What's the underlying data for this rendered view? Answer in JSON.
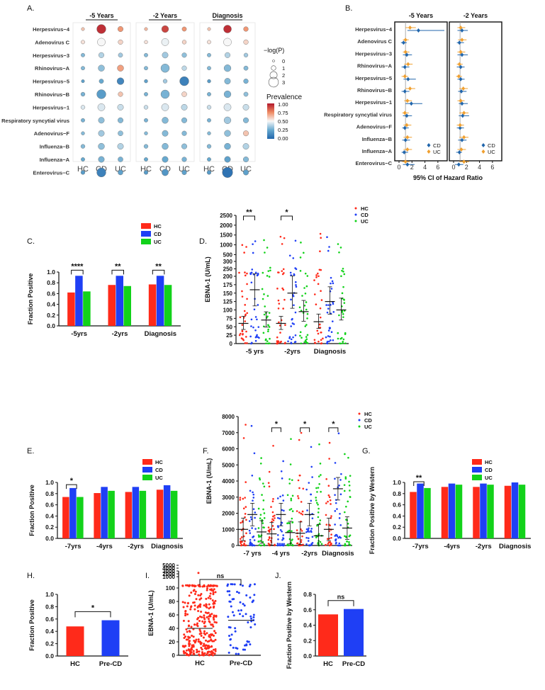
{
  "chart_data": [
    {
      "type": "scatter",
      "panel": "A.",
      "subtype": "dot-matrix",
      "columns": [
        "-5 Years",
        "-2 Years",
        "Diagnosis"
      ],
      "groups": [
        "HC",
        "CD",
        "UC"
      ],
      "rows": [
        "Herpesvirus−4",
        "Adenovirus C",
        "Herpesvirus−3",
        "Rhinovirus−A",
        "Herpesvirus−5",
        "Rhinovirus−B",
        "Herpesvirus−1",
        "Respiratory syncytial virus",
        "Adenovirus−F",
        "Influenza−B",
        "Influenza−A",
        "Enterovirus−C"
      ],
      "prevalence": [
        [
          [
            0.62,
            0.95,
            0.72
          ],
          [
            0.65,
            0.9,
            0.72
          ],
          [
            0.62,
            0.95,
            0.72
          ]
        ],
        [
          [
            0.55,
            0.5,
            0.58
          ],
          [
            0.55,
            0.48,
            0.58
          ],
          [
            0.55,
            0.5,
            0.58
          ]
        ],
        [
          [
            0.3,
            0.38,
            0.35
          ],
          [
            0.3,
            0.35,
            0.32
          ],
          [
            0.3,
            0.38,
            0.35
          ]
        ],
        [
          [
            0.3,
            0.32,
            0.7
          ],
          [
            0.3,
            0.3,
            0.4
          ],
          [
            0.3,
            0.3,
            0.3
          ]
        ],
        [
          [
            0.22,
            0.25,
            0.12
          ],
          [
            0.22,
            0.35,
            0.1
          ],
          [
            0.2,
            0.3,
            0.28
          ]
        ],
        [
          [
            0.28,
            0.2,
            0.62
          ],
          [
            0.28,
            0.28,
            0.58
          ],
          [
            0.28,
            0.28,
            0.32
          ]
        ],
        [
          [
            0.45,
            0.45,
            0.42
          ],
          [
            0.42,
            0.45,
            0.4
          ],
          [
            0.42,
            0.45,
            0.42
          ]
        ],
        [
          [
            0.28,
            0.32,
            0.3
          ],
          [
            0.28,
            0.3,
            0.3
          ],
          [
            0.28,
            0.35,
            0.3
          ]
        ],
        [
          [
            0.3,
            0.35,
            0.32
          ],
          [
            0.3,
            0.3,
            0.3
          ],
          [
            0.3,
            0.32,
            0.62
          ]
        ],
        [
          [
            0.3,
            0.32,
            0.38
          ],
          [
            0.3,
            0.3,
            0.32
          ],
          [
            0.3,
            0.28,
            0.38
          ]
        ],
        [
          [
            0.25,
            0.28,
            0.28
          ],
          [
            0.25,
            0.25,
            0.28
          ],
          [
            0.25,
            0.22,
            0.3
          ]
        ],
        [
          [
            0.2,
            0.1,
            0.22
          ],
          [
            0.2,
            0.18,
            0.22
          ],
          [
            0.2,
            0.05,
            0.22
          ]
        ]
      ],
      "neglogp": [
        [
          [
            0.3,
            2.2,
            1.0
          ],
          [
            0.3,
            1.5,
            0.7
          ],
          [
            0.3,
            1.8,
            0.8
          ]
        ],
        [
          [
            0.5,
            1.8,
            0.8
          ],
          [
            0.4,
            1.6,
            0.6
          ],
          [
            0.5,
            1.8,
            0.8
          ]
        ],
        [
          [
            0.5,
            1.0,
            0.7
          ],
          [
            0.5,
            1.2,
            0.8
          ],
          [
            0.5,
            1.0,
            0.6
          ]
        ],
        [
          [
            0.5,
            1.3,
            1.3
          ],
          [
            0.5,
            2.0,
            0.8
          ],
          [
            0.5,
            1.5,
            0.7
          ]
        ],
        [
          [
            0.3,
            0.7,
            1.5
          ],
          [
            0.4,
            0.6,
            2.2
          ],
          [
            0.4,
            1.2,
            0.8
          ]
        ],
        [
          [
            0.6,
            2.2,
            0.8
          ],
          [
            0.5,
            2.0,
            0.9
          ],
          [
            0.5,
            1.5,
            0.7
          ]
        ],
        [
          [
            0.6,
            1.6,
            1.2
          ],
          [
            0.6,
            1.6,
            1.2
          ],
          [
            0.6,
            1.6,
            1.2
          ]
        ],
        [
          [
            0.5,
            1.2,
            1.0
          ],
          [
            0.5,
            1.3,
            1.0
          ],
          [
            0.5,
            1.5,
            1.0
          ]
        ],
        [
          [
            0.4,
            1.2,
            0.9
          ],
          [
            0.4,
            1.2,
            0.8
          ],
          [
            0.4,
            1.3,
            1.0
          ]
        ],
        [
          [
            0.6,
            1.3,
            1.2
          ],
          [
            0.6,
            1.3,
            1.0
          ],
          [
            0.6,
            1.3,
            1.2
          ]
        ],
        [
          [
            0.5,
            1.2,
            0.9
          ],
          [
            0.5,
            1.2,
            0.8
          ],
          [
            0.5,
            1.2,
            1.0
          ]
        ],
        [
          [
            0.6,
            2.2,
            0.9
          ],
          [
            0.6,
            1.4,
            0.8
          ],
          [
            0.6,
            2.6,
            1.0
          ]
        ]
      ],
      "size_legend_title": "−log(P)",
      "size_legend": [
        "0",
        "1",
        "2",
        "3"
      ],
      "color_legend_title": "Prevalence",
      "color_legend": [
        "1.00",
        "0.75",
        "0.50",
        "0.25",
        "0.00"
      ]
    },
    {
      "type": "scatter",
      "panel": "B.",
      "subtype": "forest",
      "xlabel": "95% CI of Hazard Ratio",
      "facets": [
        "-5 Years",
        "-2 Years"
      ],
      "xticks": [
        "0",
        "2",
        "4",
        "6"
      ],
      "xlim": [
        0,
        7
      ],
      "rows": [
        "Herpesvirus−4",
        "Adenovirus C",
        "Herpesvirus−3",
        "Rhinovirus−A",
        "Herpesvirus−5",
        "Rhinovirus−B",
        "Herpesvirus−1",
        "Respiratory syncytial virus",
        "Adenovirus−F",
        "Influenza−B",
        "Influenza−A",
        "Enterovirus−C"
      ],
      "series": [
        {
          "name": "CD",
          "color": "#2166ac",
          "est": [
            [
              3.0,
              1.3
            ],
            [
              0.7,
              0.9
            ],
            [
              1.2,
              1.3
            ],
            [
              0.9,
              1.1
            ],
            [
              1.4,
              1.1
            ],
            [
              0.9,
              1.2
            ],
            [
              1.9,
              1.3
            ],
            [
              1.2,
              1.4
            ],
            [
              0.9,
              1.0
            ],
            [
              1.0,
              1.3
            ],
            [
              0.8,
              0.9
            ],
            [
              1.3,
              0.8
            ]
          ],
          "lo": [
            [
              1.3,
              0.6
            ],
            [
              0.3,
              0.5
            ],
            [
              0.6,
              0.6
            ],
            [
              0.4,
              0.5
            ],
            [
              0.7,
              0.6
            ],
            [
              0.4,
              0.7
            ],
            [
              1.0,
              0.8
            ],
            [
              0.6,
              0.8
            ],
            [
              0.5,
              0.5
            ],
            [
              0.5,
              0.7
            ],
            [
              0.4,
              0.4
            ],
            [
              0.6,
              0.2
            ]
          ],
          "hi": [
            [
              7.0,
              2.2
            ],
            [
              1.2,
              1.6
            ],
            [
              2.0,
              2.2
            ],
            [
              1.6,
              1.7
            ],
            [
              2.6,
              1.7
            ],
            [
              1.6,
              2.0
            ],
            [
              3.6,
              2.2
            ],
            [
              2.0,
              2.4
            ],
            [
              1.5,
              1.6
            ],
            [
              1.7,
              2.0
            ],
            [
              1.4,
              1.3
            ],
            [
              2.4,
              1.5
            ]
          ]
        },
        {
          "name": "UC",
          "color": "#f0a030",
          "est": [
            [
              1.7,
              1.1
            ],
            [
              1.0,
              1.3
            ],
            [
              1.0,
              1.1
            ],
            [
              1.4,
              0.9
            ],
            [
              0.9,
              0.8
            ],
            [
              1.7,
              1.5
            ],
            [
              1.3,
              1.1
            ],
            [
              0.9,
              1.6
            ],
            [
              1.2,
              1.0
            ],
            [
              1.3,
              1.6
            ],
            [
              1.3,
              1.2
            ],
            [
              1.0,
              1.6
            ]
          ],
          "lo": [
            [
              1.0,
              0.6
            ],
            [
              0.6,
              0.7
            ],
            [
              0.6,
              0.6
            ],
            [
              0.8,
              0.5
            ],
            [
              0.4,
              0.4
            ],
            [
              1.0,
              0.9
            ],
            [
              0.8,
              0.6
            ],
            [
              0.5,
              0.9
            ],
            [
              0.7,
              0.5
            ],
            [
              0.7,
              0.9
            ],
            [
              0.7,
              0.6
            ],
            [
              0.5,
              0.9
            ]
          ],
          "hi": [
            [
              2.6,
              1.8
            ],
            [
              1.5,
              2.0
            ],
            [
              1.6,
              1.8
            ],
            [
              2.1,
              1.4
            ],
            [
              1.4,
              1.3
            ],
            [
              2.5,
              2.2
            ],
            [
              2.0,
              1.7
            ],
            [
              1.5,
              2.3
            ],
            [
              1.9,
              1.6
            ],
            [
              2.0,
              2.3
            ],
            [
              2.0,
              1.9
            ],
            [
              1.6,
              2.4
            ]
          ]
        }
      ]
    },
    {
      "type": "bar",
      "panel": "C.",
      "ylabel": "Fraction Positive",
      "categories": [
        "-5yrs",
        "-2yrs",
        "Diagnosis"
      ],
      "yticks": [
        "0.0",
        "0.2",
        "0.4",
        "0.6",
        "0.8",
        "1.0"
      ],
      "ylim": [
        0,
        1.0
      ],
      "series": [
        {
          "name": "HC",
          "color": "#ff2a1a",
          "values": [
            0.62,
            0.76,
            0.77
          ]
        },
        {
          "name": "CD",
          "color": "#1f3ff5",
          "values": [
            0.93,
            0.93,
            0.93
          ]
        },
        {
          "name": "UC",
          "color": "#12d21a",
          "values": [
            0.64,
            0.74,
            0.76
          ]
        }
      ],
      "annotations": [
        "****",
        "**",
        "**"
      ]
    },
    {
      "type": "scatter",
      "panel": "D.",
      "ylabel": "EBNA-1 (U/mL)",
      "categories": [
        "-5 yrs",
        "-2yrs",
        "Diagnosis"
      ],
      "yticks_low": [
        "0",
        "25",
        "50",
        "75",
        "100",
        "125",
        "150",
        "175",
        "200",
        "250",
        "300"
      ],
      "yticks_high": [
        "500",
        "1000",
        "1500",
        "2000",
        "2500"
      ],
      "legend": [
        "HC",
        "CD",
        "UC"
      ],
      "means": [
        [
          60,
          160,
          70
        ],
        [
          60,
          150,
          95
        ],
        [
          65,
          125,
          100
        ]
      ],
      "annotations": [
        "**",
        "*"
      ]
    },
    {
      "type": "bar",
      "panel": "E.",
      "ylabel": "Fraction Positive",
      "categories": [
        "-7yrs",
        "-4yrs",
        "-2yrs",
        "Diagnosis"
      ],
      "yticks": [
        "0.0",
        "0.2",
        "0.4",
        "0.6",
        "0.8",
        "1.0"
      ],
      "ylim": [
        0,
        1.0
      ],
      "series": [
        {
          "name": "HC",
          "color": "#ff2a1a",
          "values": [
            0.74,
            0.81,
            0.83,
            0.87
          ]
        },
        {
          "name": "CD",
          "color": "#1f3ff5",
          "values": [
            0.9,
            0.92,
            0.92,
            0.95
          ]
        },
        {
          "name": "UC",
          "color": "#12d21a",
          "values": [
            0.74,
            0.85,
            0.85,
            0.85
          ]
        }
      ],
      "annotations": [
        "*"
      ]
    },
    {
      "type": "scatter",
      "panel": "F.",
      "ylabel": "EBNA-1 (U/mL)",
      "categories": [
        "-7 yrs",
        "-4 yrs",
        "-2yrs",
        "Diagnosis"
      ],
      "yticks": [
        "0",
        "1000",
        "2000",
        "3000",
        "4000",
        "5000",
        "6000",
        "7000",
        "8000"
      ],
      "ylim": [
        0,
        8000
      ],
      "legend": [
        "HC",
        "CD",
        "UC"
      ],
      "means": [
        [
          250,
          480,
          210
        ],
        [
          180,
          480,
          200
        ],
        [
          190,
          480,
          150
        ],
        [
          250,
          880,
          270
        ]
      ],
      "annotations": [
        "*",
        "*",
        "*"
      ]
    },
    {
      "type": "bar",
      "panel": "G.",
      "ylabel": "Fraction Positive by Western",
      "categories": [
        "-7yrs",
        "-4yrs",
        "-2yrs",
        "Diagnosis"
      ],
      "yticks": [
        "0.0",
        "0.2",
        "0.4",
        "0.6",
        "0.8",
        "1.0"
      ],
      "ylim": [
        0,
        1.0
      ],
      "series": [
        {
          "name": "HC",
          "color": "#ff2a1a",
          "values": [
            0.83,
            0.92,
            0.92,
            0.94
          ]
        },
        {
          "name": "CD",
          "color": "#1f3ff5",
          "values": [
            0.98,
            0.98,
            0.98,
            1.0
          ]
        },
        {
          "name": "UC",
          "color": "#12d21a",
          "values": [
            0.9,
            0.96,
            0.96,
            0.96
          ]
        }
      ],
      "annotations": [
        "**"
      ]
    },
    {
      "type": "bar",
      "panel": "H.",
      "ylabel": "Fraction Positive",
      "categories": [
        "HC",
        "Pre-CD"
      ],
      "yticks": [
        "0.0",
        "0.2",
        "0.4",
        "0.6",
        "0.8",
        "1.0"
      ],
      "ylim": [
        0,
        1.0
      ],
      "values": [
        0.48,
        0.58
      ],
      "colors": [
        "#ff2a1a",
        "#1f3ff5"
      ],
      "annotations": [
        "*"
      ]
    },
    {
      "type": "scatter",
      "panel": "I.",
      "ylabel": "EBNA-1 (U/mL)",
      "categories": [
        "HC",
        "Pre-CD"
      ],
      "yticks_low": [
        "0",
        "20",
        "40",
        "60",
        "80",
        "100"
      ],
      "yticks_high": [
        "1000",
        "2000",
        "3000",
        "4000",
        "5000"
      ],
      "means": [
        40,
        52
      ],
      "annotations": [
        "ns"
      ]
    },
    {
      "type": "bar",
      "panel": "J.",
      "ylabel": "Fraction Positive by Western",
      "categories": [
        "HC",
        "Pre-CD"
      ],
      "yticks": [
        "0.0",
        "0.2",
        "0.4",
        "0.6",
        "0.8"
      ],
      "ylim": [
        0,
        0.8
      ],
      "values": [
        0.54,
        0.61
      ],
      "colors": [
        "#ff2a1a",
        "#1f3ff5"
      ],
      "annotations": [
        "ns"
      ]
    }
  ]
}
